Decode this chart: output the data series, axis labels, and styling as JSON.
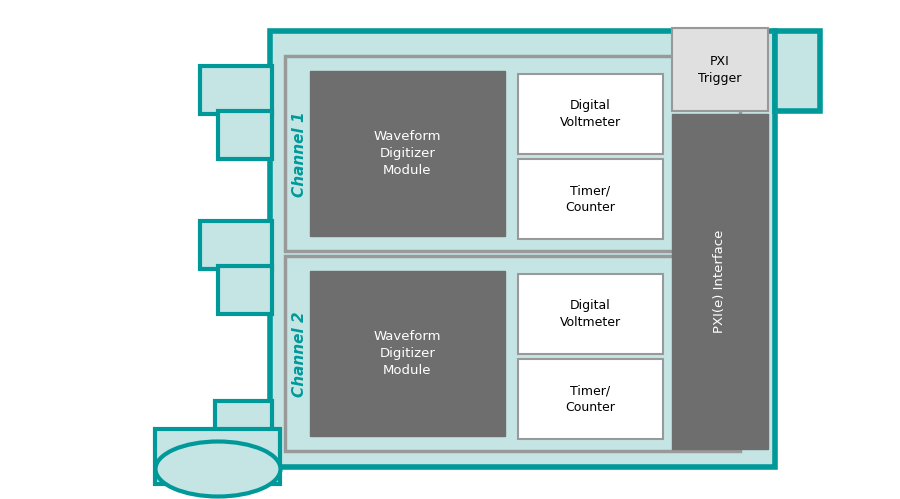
{
  "teal": "#009999",
  "light_teal": "#C5E5E5",
  "light_gray": "#E0E0E0",
  "medium_gray": "#999999",
  "dark_gray": "#787878",
  "inner_gray": "#6E6E6E",
  "white": "#FFFFFF",
  "black": "#000000",
  "channel1_label": "Channel 1",
  "channel2_label": "Channel 2",
  "waveform_label": "Waveform\nDigitizer\nModule",
  "digital_label": "Digital\nVoltmeter",
  "timer_label": "Timer/\nCounter",
  "pxi_trigger_label": "PXI\nTrigger",
  "pxie_interface_label": "PXI(e) Interface",
  "fig_w": 9.0,
  "fig_h": 4.99,
  "dpi": 100
}
